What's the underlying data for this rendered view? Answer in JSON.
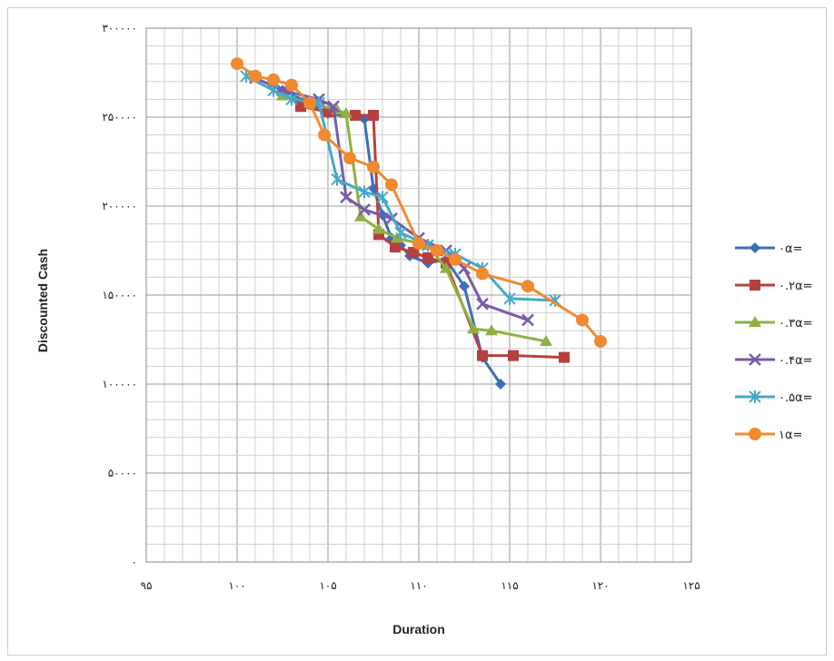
{
  "chart_data": {
    "type": "line",
    "title": "",
    "xlabel": "Duration",
    "ylabel": "Discounted Cash",
    "xlim": [
      95,
      125
    ],
    "ylim": [
      0,
      300000
    ],
    "x_ticks": [
      95,
      100,
      105,
      110,
      115,
      120,
      125
    ],
    "y_ticks": [
      0,
      50000,
      100000,
      150000,
      200000,
      250000,
      300000
    ],
    "x_tick_labels": [
      "۹۵",
      "۱۰۰",
      "۱۰۵",
      "۱۱۰",
      "۱۱۵",
      "۱۲۰",
      "۱۲۵"
    ],
    "y_tick_labels": [
      "۰",
      "۵۰۰۰۰",
      "۱۰۰۰۰۰",
      "۱۵۰۰۰۰",
      "۲۰۰۰۰۰",
      "۲۵۰۰۰۰",
      "۳۰۰۰۰۰"
    ],
    "grid": true,
    "legend_position": "right",
    "series": [
      {
        "name": "۰α=",
        "color": "#3a6fb5",
        "marker": "diamond",
        "points": [
          [
            102.5,
            265000
          ],
          [
            104,
            258000
          ],
          [
            105,
            252000
          ],
          [
            107,
            249000
          ],
          [
            107.5,
            210000
          ],
          [
            108,
            195000
          ],
          [
            108.5,
            182000
          ],
          [
            109,
            178000
          ],
          [
            109.5,
            172000
          ],
          [
            110.5,
            168000
          ],
          [
            111.5,
            170000
          ],
          [
            112.5,
            155000
          ],
          [
            113.5,
            115000
          ],
          [
            114.5,
            100000
          ]
        ]
      },
      {
        "name": "۰.۲α=",
        "color": "#b64040",
        "marker": "square",
        "points": [
          [
            103.5,
            256000
          ],
          [
            105,
            253000
          ],
          [
            106.5,
            251000
          ],
          [
            107.5,
            251000
          ],
          [
            107.8,
            184000
          ],
          [
            108.7,
            177000
          ],
          [
            109.7,
            174000
          ],
          [
            110.5,
            171000
          ],
          [
            111.5,
            168000
          ],
          [
            113.5,
            116000
          ],
          [
            115.2,
            116000
          ],
          [
            118,
            115000
          ]
        ]
      },
      {
        "name": "۰.۳α=",
        "color": "#8fb040",
        "marker": "triangle",
        "points": [
          [
            102.5,
            262000
          ],
          [
            104,
            258000
          ],
          [
            105.5,
            254000
          ],
          [
            106,
            252000
          ],
          [
            106.8,
            194000
          ],
          [
            107.8,
            187000
          ],
          [
            108.8,
            182000
          ],
          [
            110.5,
            178000
          ],
          [
            111.5,
            165000
          ],
          [
            113,
            131000
          ],
          [
            114,
            130000
          ],
          [
            117,
            124000
          ]
        ]
      },
      {
        "name": "۰.۴α=",
        "color": "#7a5aa6",
        "marker": "x",
        "points": [
          [
            101,
            272000
          ],
          [
            102.5,
            265000
          ],
          [
            104.5,
            260000
          ],
          [
            105.3,
            256000
          ],
          [
            106,
            205000
          ],
          [
            107,
            198000
          ],
          [
            108.5,
            193000
          ],
          [
            110,
            182000
          ],
          [
            111.5,
            175000
          ],
          [
            112.5,
            165000
          ],
          [
            113.5,
            145000
          ],
          [
            116,
            136000
          ]
        ]
      },
      {
        "name": "۰.۵α=",
        "color": "#46a8c8",
        "marker": "asterisk",
        "points": [
          [
            100.5,
            273000
          ],
          [
            102,
            265000
          ],
          [
            103,
            260000
          ],
          [
            104.5,
            258000
          ],
          [
            105.5,
            215000
          ],
          [
            107,
            208000
          ],
          [
            108,
            205000
          ],
          [
            109,
            185000
          ],
          [
            110.5,
            178000
          ],
          [
            112,
            173000
          ],
          [
            113.5,
            165000
          ],
          [
            115,
            148000
          ],
          [
            117.5,
            147000
          ]
        ]
      },
      {
        "name": "۱α=",
        "color": "#f08a30",
        "marker": "circle",
        "points": [
          [
            100,
            280000
          ],
          [
            101,
            273000
          ],
          [
            102,
            271000
          ],
          [
            103,
            268000
          ],
          [
            104,
            258000
          ],
          [
            104.8,
            240000
          ],
          [
            106.2,
            227000
          ],
          [
            107.5,
            222000
          ],
          [
            108.5,
            212000
          ],
          [
            110,
            179000
          ],
          [
            111,
            175000
          ],
          [
            112,
            170000
          ],
          [
            113.5,
            162000
          ],
          [
            116,
            155000
          ],
          [
            119,
            136000
          ],
          [
            120,
            124000
          ]
        ]
      }
    ]
  }
}
